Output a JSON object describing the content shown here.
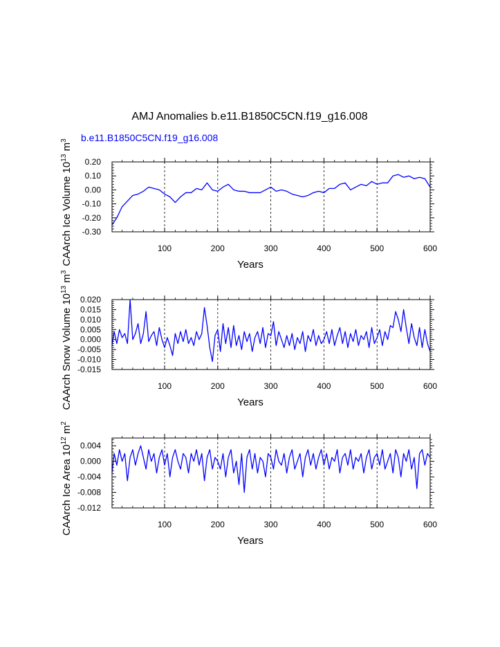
{
  "page_title": "AMJ Anomalies b.e11.B1850C5CN.f19_g16.008",
  "case_label": "b.e11.B1850C5CN.f19_g16.008",
  "colors": {
    "series": "#0000ff",
    "axis": "#000000",
    "grid": "#000000",
    "case_label": "#0000ff"
  },
  "chart_data": [
    {
      "type": "line",
      "name": "ice-volume",
      "ylabel_main": "CAArch Ice Volume 10",
      "ylabel_exp": "13",
      "ylabel_unit": " m",
      "ylabel_unit_exp": "3",
      "xlabel": "Years",
      "xlim": [
        1,
        600
      ],
      "ylim": [
        -0.3,
        0.2
      ],
      "xticks": [
        100,
        200,
        300,
        400,
        500,
        600
      ],
      "xtick_labels": [
        "100",
        "200",
        "300",
        "400",
        "500",
        "600"
      ],
      "yticks": [
        -0.3,
        -0.2,
        -0.1,
        0.0,
        0.1,
        0.2
      ],
      "ytick_labels": [
        "-0.30",
        "-0.20",
        "-0.10",
        "0.00",
        "0.10",
        "0.20"
      ],
      "grid_x": [
        100,
        200,
        300,
        400,
        500
      ],
      "series": [
        {
          "name": "b.e11.B1850C5CN.f19_g16.008",
          "x": [
            1,
            10,
            20,
            30,
            40,
            50,
            60,
            70,
            80,
            90,
            100,
            110,
            120,
            130,
            140,
            150,
            160,
            170,
            180,
            190,
            200,
            210,
            220,
            230,
            240,
            250,
            260,
            270,
            280,
            290,
            300,
            310,
            320,
            330,
            340,
            350,
            360,
            370,
            380,
            390,
            400,
            410,
            420,
            430,
            440,
            450,
            460,
            470,
            480,
            490,
            500,
            510,
            520,
            530,
            540,
            550,
            560,
            570,
            580,
            590,
            600
          ],
          "y": [
            -0.25,
            -0.2,
            -0.12,
            -0.08,
            -0.04,
            -0.03,
            -0.01,
            0.02,
            0.01,
            0.0,
            -0.03,
            -0.05,
            -0.09,
            -0.05,
            -0.02,
            -0.02,
            0.01,
            0.0,
            0.05,
            0.0,
            -0.01,
            0.02,
            0.04,
            0.0,
            -0.01,
            -0.01,
            -0.02,
            -0.02,
            -0.02,
            0.0,
            0.02,
            -0.01,
            0.0,
            -0.01,
            -0.03,
            -0.04,
            -0.05,
            -0.04,
            -0.02,
            -0.01,
            -0.02,
            0.01,
            0.01,
            0.04,
            0.05,
            0.0,
            0.02,
            0.04,
            0.03,
            0.06,
            0.04,
            0.05,
            0.05,
            0.1,
            0.11,
            0.09,
            0.1,
            0.08,
            0.09,
            0.08,
            0.02
          ]
        }
      ]
    },
    {
      "type": "line",
      "name": "snow-volume",
      "ylabel_main": "CAArch Snow Volume 10",
      "ylabel_exp": "13",
      "ylabel_unit": " m",
      "ylabel_unit_exp": "3",
      "xlabel": "Years",
      "xlim": [
        1,
        600
      ],
      "ylim": [
        -0.015,
        0.02
      ],
      "xticks": [
        100,
        200,
        300,
        400,
        500,
        600
      ],
      "xtick_labels": [
        "100",
        "200",
        "300",
        "400",
        "500",
        "600"
      ],
      "yticks": [
        -0.015,
        -0.01,
        -0.005,
        0.0,
        0.005,
        0.01,
        0.015,
        0.02
      ],
      "ytick_labels": [
        "-0.015",
        "-0.010",
        "-0.005",
        "0.000",
        "0.005",
        "0.010",
        "0.015",
        "0.020"
      ],
      "grid_x": [
        100,
        200,
        300,
        400,
        500
      ],
      "series": [
        {
          "name": "b.e11.B1850C5CN.f19_g16.008",
          "x": [
            1,
            5,
            10,
            15,
            20,
            25,
            30,
            35,
            40,
            45,
            50,
            55,
            60,
            65,
            70,
            75,
            80,
            85,
            90,
            95,
            100,
            105,
            110,
            115,
            120,
            125,
            130,
            135,
            140,
            145,
            150,
            155,
            160,
            165,
            170,
            175,
            180,
            185,
            190,
            195,
            200,
            205,
            210,
            215,
            220,
            225,
            230,
            235,
            240,
            245,
            250,
            255,
            260,
            265,
            270,
            275,
            280,
            285,
            290,
            295,
            300,
            305,
            310,
            315,
            320,
            325,
            330,
            335,
            340,
            345,
            350,
            355,
            360,
            365,
            370,
            375,
            380,
            385,
            390,
            395,
            400,
            405,
            410,
            415,
            420,
            425,
            430,
            435,
            440,
            445,
            450,
            455,
            460,
            465,
            470,
            475,
            480,
            485,
            490,
            495,
            500,
            505,
            510,
            515,
            520,
            525,
            530,
            535,
            540,
            545,
            550,
            555,
            560,
            565,
            570,
            575,
            580,
            585,
            590,
            595,
            600
          ],
          "y": [
            -0.003,
            0.004,
            -0.002,
            0.005,
            0.001,
            0.003,
            -0.002,
            0.02,
            0.0,
            0.003,
            0.008,
            -0.002,
            0.003,
            0.014,
            -0.001,
            0.002,
            0.004,
            -0.003,
            0.006,
            0.0,
            -0.004,
            0.001,
            -0.003,
            -0.008,
            0.003,
            -0.002,
            0.004,
            -0.001,
            0.005,
            -0.002,
            0.001,
            -0.003,
            0.004,
            0.0,
            0.003,
            0.016,
            0.007,
            -0.004,
            -0.011,
            0.002,
            0.005,
            -0.006,
            0.008,
            -0.002,
            0.006,
            -0.004,
            0.007,
            -0.003,
            0.002,
            -0.005,
            0.004,
            -0.001,
            0.003,
            -0.006,
            0.001,
            0.004,
            -0.002,
            0.006,
            -0.004,
            0.003,
            0.002,
            0.009,
            -0.003,
            0.004,
            0.0,
            -0.004,
            0.002,
            -0.003,
            0.003,
            -0.005,
            0.001,
            -0.002,
            0.004,
            -0.006,
            0.002,
            -0.001,
            0.005,
            -0.003,
            0.002,
            -0.002,
            0.0,
            0.004,
            -0.002,
            0.005,
            -0.003,
            0.002,
            0.006,
            -0.002,
            0.004,
            -0.004,
            0.003,
            -0.001,
            0.005,
            -0.003,
            0.002,
            0.0,
            0.004,
            -0.004,
            0.006,
            -0.002,
            0.001,
            0.005,
            -0.003,
            0.004,
            0.0,
            0.007,
            0.006,
            0.014,
            0.01,
            0.004,
            0.015,
            0.006,
            -0.002,
            0.008,
            0.001,
            -0.003,
            0.006,
            -0.004,
            0.005,
            -0.002,
            -0.006
          ]
        }
      ]
    },
    {
      "type": "line",
      "name": "ice-area",
      "ylabel_main": "CAArch Ice Area 10",
      "ylabel_exp": "12",
      "ylabel_unit": " m",
      "ylabel_unit_exp": "2",
      "xlabel": "Years",
      "xlim": [
        1,
        600
      ],
      "ylim": [
        -0.012,
        0.006
      ],
      "xticks": [
        100,
        200,
        300,
        400,
        500,
        600
      ],
      "xtick_labels": [
        "100",
        "200",
        "300",
        "400",
        "500",
        "600"
      ],
      "yticks": [
        -0.012,
        -0.008,
        -0.004,
        0.0,
        0.004
      ],
      "ytick_labels": [
        "-0.012",
        "-0.008",
        "-0.004",
        "0.000",
        "0.004"
      ],
      "grid_x": [
        100,
        200,
        300,
        400,
        500
      ],
      "series": [
        {
          "name": "b.e11.B1850C5CN.f19_g16.008",
          "x": [
            1,
            5,
            10,
            15,
            20,
            25,
            30,
            35,
            40,
            45,
            50,
            55,
            60,
            65,
            70,
            75,
            80,
            85,
            90,
            95,
            100,
            105,
            110,
            115,
            120,
            125,
            130,
            135,
            140,
            145,
            150,
            155,
            160,
            165,
            170,
            175,
            180,
            185,
            190,
            195,
            200,
            205,
            210,
            215,
            220,
            225,
            230,
            235,
            240,
            245,
            250,
            255,
            260,
            265,
            270,
            275,
            280,
            285,
            290,
            295,
            300,
            305,
            310,
            315,
            320,
            325,
            330,
            335,
            340,
            345,
            350,
            355,
            360,
            365,
            370,
            375,
            380,
            385,
            390,
            395,
            400,
            405,
            410,
            415,
            420,
            425,
            430,
            435,
            440,
            445,
            450,
            455,
            460,
            465,
            470,
            475,
            480,
            485,
            490,
            495,
            500,
            505,
            510,
            515,
            520,
            525,
            530,
            535,
            540,
            545,
            550,
            555,
            560,
            565,
            570,
            575,
            580,
            585,
            590,
            595,
            600
          ],
          "y": [
            -0.003,
            0.002,
            -0.001,
            0.003,
            0.0,
            0.002,
            -0.005,
            0.001,
            0.003,
            -0.001,
            0.002,
            0.004,
            0.001,
            -0.002,
            0.003,
            0.0,
            0.002,
            -0.003,
            0.001,
            0.003,
            -0.001,
            0.002,
            -0.004,
            0.001,
            0.003,
            0.0,
            -0.002,
            0.002,
            0.001,
            -0.003,
            0.002,
            0.0,
            0.003,
            -0.001,
            0.002,
            -0.005,
            0.001,
            0.003,
            -0.002,
            0.001,
            0.0,
            -0.002,
            0.002,
            -0.004,
            0.001,
            0.003,
            -0.003,
            0.0,
            -0.006,
            0.002,
            -0.008,
            0.001,
            0.003,
            -0.002,
            0.002,
            -0.003,
            0.001,
            0.0,
            -0.004,
            0.002,
            0.001,
            -0.002,
            0.003,
            0.0,
            -0.001,
            0.002,
            -0.003,
            0.001,
            0.003,
            -0.002,
            0.0,
            0.002,
            -0.004,
            0.001,
            0.003,
            -0.001,
            0.002,
            -0.002,
            0.001,
            0.003,
            -0.001,
            0.002,
            -0.002,
            0.001,
            0.0,
            0.003,
            -0.003,
            0.001,
            0.002,
            -0.001,
            0.003,
            -0.002,
            0.001,
            0.0,
            0.002,
            -0.003,
            0.001,
            0.003,
            -0.002,
            0.001,
            0.002,
            -0.001,
            0.003,
            -0.002,
            0.0,
            0.002,
            -0.003,
            0.003,
            0.001,
            -0.004,
            0.002,
            0.0,
            0.003,
            -0.002,
            0.001,
            -0.007,
            0.002,
            0.003,
            -0.001,
            0.002,
            0.001
          ]
        }
      ]
    }
  ]
}
